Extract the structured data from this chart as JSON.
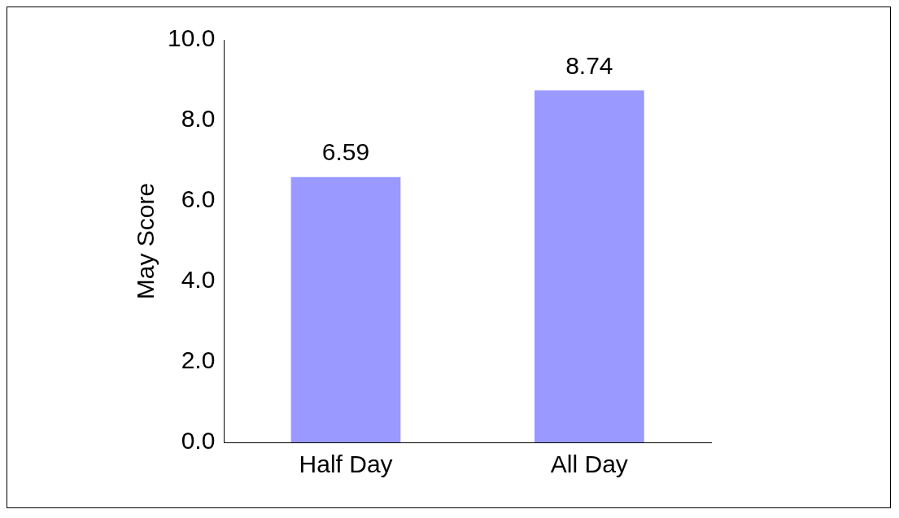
{
  "chart_data": {
    "type": "bar",
    "ylabel": "May Score",
    "categories": [
      "Half Day",
      "All Day"
    ],
    "values": [
      6.59,
      8.74
    ],
    "color": "#9999ff",
    "ylim": [
      0,
      10
    ],
    "yticks": [
      {
        "value": 0,
        "label": "0.0"
      },
      {
        "value": 2,
        "label": "2.0"
      },
      {
        "value": 4,
        "label": "4.0"
      },
      {
        "value": 6,
        "label": "6.0"
      },
      {
        "value": 8,
        "label": "8.0"
      },
      {
        "value": 10,
        "label": "10.0"
      }
    ],
    "grid": false,
    "legend": false,
    "data_labels": true
  }
}
